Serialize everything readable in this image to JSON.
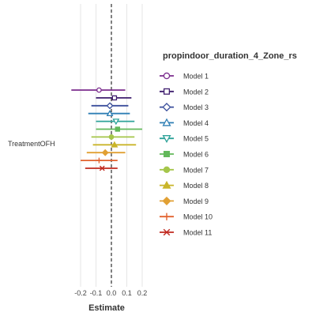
{
  "chart_data": {
    "type": "forest",
    "term": "TreatmentOFH",
    "xlabel": "Estimate",
    "xlim": [
      -0.25,
      0.25
    ],
    "xticks": [
      -0.2,
      -0.1,
      0.0,
      0.1,
      0.2
    ],
    "xtick_labels": [
      "-0.2",
      "-0.1",
      "0.0",
      "0.1",
      "0.2"
    ],
    "reference_line": 0,
    "grid": "vertical",
    "legend": {
      "title": "propindoor_duration_4_Zone_rs",
      "position": "right"
    },
    "series": [
      {
        "name": "Model 1",
        "estimate": -0.08,
        "lower": -0.26,
        "upper": 0.09,
        "color": "#7b2d8e",
        "shape": "circle-open"
      },
      {
        "name": "Model 2",
        "estimate": 0.02,
        "lower": -0.1,
        "upper": 0.13,
        "color": "#3f1e6e",
        "shape": "square-open"
      },
      {
        "name": "Model 3",
        "estimate": -0.01,
        "lower": -0.13,
        "upper": 0.11,
        "color": "#3b4f9c",
        "shape": "diamond-open"
      },
      {
        "name": "Model 4",
        "estimate": -0.01,
        "lower": -0.15,
        "upper": 0.12,
        "color": "#2f7fb5",
        "shape": "triangle-up-open"
      },
      {
        "name": "Model 5",
        "estimate": 0.03,
        "lower": -0.1,
        "upper": 0.15,
        "color": "#2fa39a",
        "shape": "triangle-down-open"
      },
      {
        "name": "Model 6",
        "estimate": 0.04,
        "lower": -0.1,
        "upper": 0.2,
        "color": "#63b85a",
        "shape": "square-filled"
      },
      {
        "name": "Model 7",
        "estimate": 0.0,
        "lower": -0.13,
        "upper": 0.15,
        "color": "#a5c64a",
        "shape": "circle-filled"
      },
      {
        "name": "Model 8",
        "estimate": 0.02,
        "lower": -0.12,
        "upper": 0.16,
        "color": "#c9b52a",
        "shape": "triangle-up-filled"
      },
      {
        "name": "Model 9",
        "estimate": -0.04,
        "lower": -0.16,
        "upper": 0.09,
        "color": "#e1a034",
        "shape": "diamond-filled"
      },
      {
        "name": "Model 10",
        "estimate": -0.08,
        "lower": -0.2,
        "upper": 0.04,
        "color": "#e2622e",
        "shape": "plus"
      },
      {
        "name": "Model 11",
        "estimate": -0.06,
        "lower": -0.17,
        "upper": 0.04,
        "color": "#c1291f",
        "shape": "x"
      }
    ]
  }
}
